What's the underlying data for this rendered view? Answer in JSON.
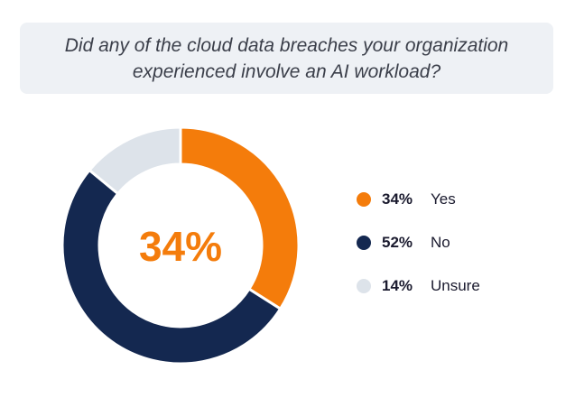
{
  "question": "Did any of the cloud data breaches your organization experienced involve an AI workload?",
  "center_label": "34%",
  "colors": {
    "yes": "#f47c0b",
    "no": "#142850",
    "unsure": "#dde3ea"
  },
  "chart_data": {
    "type": "pie",
    "title": "Did any of the cloud data breaches your organization experienced involve an AI workload?",
    "categories": [
      "Yes",
      "No",
      "Unsure"
    ],
    "values": [
      34,
      52,
      14
    ],
    "value_labels": [
      "34%",
      "52%",
      "14%"
    ],
    "donut": true,
    "legend": "right"
  }
}
